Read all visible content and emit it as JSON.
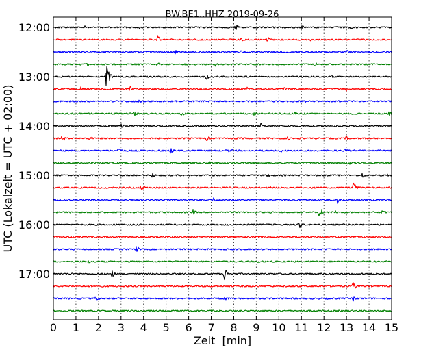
{
  "chart_data": {
    "type": "line",
    "title": "BW.BE1..HHZ 2019-09-26",
    "xlabel": "Zeit  [min]",
    "ylabel": "UTC (Lokalzeit = UTC + 02:00)",
    "xlim": [
      0,
      15
    ],
    "x_ticks": [
      "0",
      "1",
      "2",
      "3",
      "4",
      "5",
      "6",
      "7",
      "8",
      "9",
      "10",
      "11",
      "12",
      "13",
      "14",
      "15"
    ],
    "y_ticks": [
      "12:00",
      "13:00",
      "14:00",
      "15:00",
      "16:00",
      "17:00"
    ],
    "grid": "vertical dotted",
    "trace_colors": [
      "#000000",
      "#ff0000",
      "#0000ff",
      "#008000"
    ],
    "traces": [
      {
        "start": "12:00",
        "events": [
          [
            1.4,
            4
          ],
          [
            3.8,
            4
          ],
          [
            8.1,
            5
          ],
          [
            11.0,
            4
          ],
          [
            13.2,
            5
          ]
        ]
      },
      {
        "start": "12:15",
        "events": [
          [
            4.6,
            8
          ],
          [
            8.3,
            4
          ],
          [
            9.5,
            5
          ],
          [
            11.3,
            5
          ]
        ]
      },
      {
        "start": "12:30",
        "events": [
          [
            3.7,
            4
          ],
          [
            5.4,
            4
          ],
          [
            8.3,
            3
          ],
          [
            13.0,
            3
          ]
        ]
      },
      {
        "start": "12:45",
        "events": [
          [
            1.5,
            3
          ],
          [
            4.6,
            4
          ],
          [
            7.2,
            3
          ],
          [
            11.6,
            5
          ]
        ]
      },
      {
        "start": "13:00",
        "events": [
          [
            2.35,
            30
          ],
          [
            6.8,
            5
          ],
          [
            12.3,
            4
          ]
        ]
      },
      {
        "start": "13:15",
        "events": [
          [
            1.2,
            4
          ],
          [
            3.4,
            5
          ],
          [
            8.6,
            3
          ],
          [
            10.2,
            6
          ],
          [
            13.0,
            4
          ]
        ]
      },
      {
        "start": "13:30",
        "events": [
          [
            3.8,
            4
          ],
          [
            5.4,
            3
          ],
          [
            11.1,
            4
          ]
        ]
      },
      {
        "start": "13:45",
        "events": [
          [
            3.6,
            4
          ],
          [
            5.7,
            5
          ],
          [
            8.9,
            5
          ],
          [
            10.7,
            3
          ],
          [
            14.9,
            5
          ]
        ]
      },
      {
        "start": "14:00",
        "events": [
          [
            3.0,
            7
          ],
          [
            9.2,
            4
          ],
          [
            12.6,
            4
          ]
        ]
      },
      {
        "start": "14:15",
        "events": [
          [
            0.4,
            6
          ],
          [
            1.6,
            4
          ],
          [
            6.8,
            5
          ],
          [
            10.4,
            3
          ],
          [
            13.0,
            4
          ]
        ]
      },
      {
        "start": "14:30",
        "events": [
          [
            2.9,
            6
          ],
          [
            5.2,
            5
          ],
          [
            7.8,
            4
          ],
          [
            10.1,
            4
          ],
          [
            12.9,
            4
          ]
        ]
      },
      {
        "start": "14:45",
        "events": [
          [
            6.9,
            3
          ],
          [
            13.1,
            4
          ]
        ]
      },
      {
        "start": "15:00",
        "events": [
          [
            4.4,
            5
          ],
          [
            9.5,
            5
          ],
          [
            13.7,
            5
          ],
          [
            14.8,
            4
          ]
        ]
      },
      {
        "start": "15:15",
        "events": [
          [
            3.9,
            6
          ],
          [
            9.6,
            3
          ],
          [
            13.3,
            10
          ]
        ]
      },
      {
        "start": "15:30",
        "events": [
          [
            7.1,
            4
          ],
          [
            12.6,
            6
          ]
        ]
      },
      {
        "start": "15:45",
        "events": [
          [
            6.2,
            4
          ],
          [
            11.8,
            8
          ],
          [
            12.5,
            4
          ],
          [
            14.6,
            5
          ]
        ]
      },
      {
        "start": "16:00",
        "events": [
          [
            10.9,
            6
          ]
        ]
      },
      {
        "start": "16:15",
        "events": [
          [
            9.0,
            4
          ]
        ]
      },
      {
        "start": "16:30",
        "events": [
          [
            3.7,
            5
          ]
        ]
      },
      {
        "start": "16:45",
        "events": [
          [
            1.6,
            4
          ],
          [
            9.1,
            3
          ]
        ]
      },
      {
        "start": "17:00",
        "events": [
          [
            2.6,
            6
          ],
          [
            7.6,
            11
          ]
        ]
      },
      {
        "start": "17:15",
        "events": [
          [
            13.3,
            7
          ]
        ]
      },
      {
        "start": "17:30",
        "events": [
          [
            1.9,
            5
          ],
          [
            7.6,
            5
          ],
          [
            13.3,
            4
          ]
        ]
      },
      {
        "start": "17:45",
        "events": [
          [
            7.3,
            3
          ]
        ]
      }
    ]
  }
}
